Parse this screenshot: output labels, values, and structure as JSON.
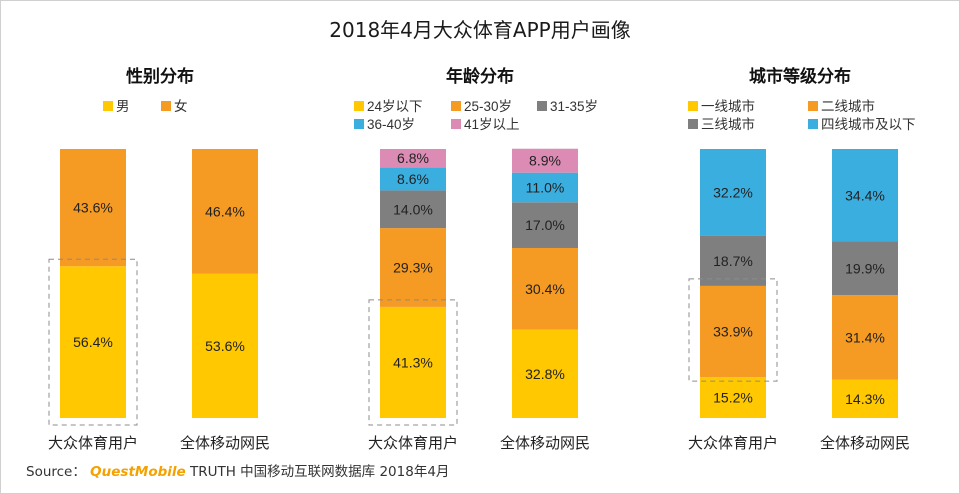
{
  "title": "2018年4月大众体育APP用户画像",
  "source_label": "Source：",
  "source_brand": "QuestMobile",
  "source_rest": "TRUTH 中国移动互联网数据库 2018年4月",
  "colors": {
    "yellow": "#FFC800",
    "orange": "#F59A22",
    "gray": "#7F7F7F",
    "blue": "#3BAEE0",
    "pink": "#DC8CB4"
  },
  "chart_data": [
    {
      "type": "bar",
      "stacked": true,
      "title": "性别分布",
      "categories": [
        "大众体育用户",
        "全体移动网民"
      ],
      "series": [
        {
          "name": "男",
          "color": "#FFC800",
          "values": [
            56.4,
            53.6
          ],
          "labels": [
            "56.4%",
            "53.6%"
          ]
        },
        {
          "name": "女",
          "color": "#F59A22",
          "values": [
            43.6,
            46.4
          ],
          "labels": [
            "43.6%",
            "46.4%"
          ]
        }
      ],
      "ylim": [
        0,
        100
      ],
      "legend_position": "top",
      "highlight": "大众体育用户 男"
    },
    {
      "type": "bar",
      "stacked": true,
      "title": "年龄分布",
      "categories": [
        "大众体育用户",
        "全体移动网民"
      ],
      "series": [
        {
          "name": "24岁以下",
          "color": "#FFC800",
          "values": [
            41.3,
            32.8
          ],
          "labels": [
            "41.3%",
            "32.8%"
          ]
        },
        {
          "name": "25-30岁",
          "color": "#F59A22",
          "values": [
            29.3,
            30.4
          ],
          "labels": [
            "29.3%",
            "30.4%"
          ]
        },
        {
          "name": "31-35岁",
          "color": "#7F7F7F",
          "values": [
            14.0,
            17.0
          ],
          "labels": [
            "14.0%",
            "17.0%"
          ]
        },
        {
          "name": "36-40岁",
          "color": "#3BAEE0",
          "values": [
            8.6,
            11.0
          ],
          "labels": [
            "8.6%",
            "11.0%"
          ]
        },
        {
          "name": "41岁以上",
          "color": "#DC8CB4",
          "values": [
            6.8,
            8.9
          ],
          "labels": [
            "6.8%",
            "8.9%"
          ]
        }
      ],
      "ylim": [
        0,
        100
      ],
      "legend_position": "top",
      "highlight": "大众体育用户 24岁以下"
    },
    {
      "type": "bar",
      "stacked": true,
      "title": "城市等级分布",
      "categories": [
        "大众体育用户",
        "全体移动网民"
      ],
      "series": [
        {
          "name": "一线城市",
          "color": "#FFC800",
          "values": [
            15.2,
            14.3
          ],
          "labels": [
            "15.2%",
            "14.3%"
          ]
        },
        {
          "name": "二线城市",
          "color": "#F59A22",
          "values": [
            33.9,
            31.4
          ],
          "labels": [
            "33.9%",
            "31.4%"
          ]
        },
        {
          "name": "三线城市",
          "color": "#7F7F7F",
          "values": [
            18.7,
            19.9
          ],
          "labels": [
            "18.7%",
            "19.9%"
          ]
        },
        {
          "name": "四线城市及以下",
          "color": "#3BAEE0",
          "values": [
            32.2,
            34.4
          ],
          "labels": [
            "32.2%",
            "34.4%"
          ]
        }
      ],
      "ylim": [
        0,
        100
      ],
      "legend_position": "top",
      "highlight": "大众体育用户 二线城市"
    }
  ]
}
